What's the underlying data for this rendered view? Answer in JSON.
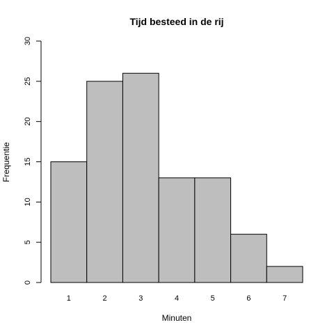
{
  "chart_data": {
    "type": "bar",
    "title": "Tijd besteed in de rij",
    "xlabel": "Minuten",
    "ylabel": "Frequentie",
    "categories": [
      "1",
      "2",
      "3",
      "4",
      "5",
      "6",
      "7"
    ],
    "values": [
      15,
      25,
      26,
      13,
      13,
      6,
      2
    ],
    "ylim": [
      0,
      30
    ],
    "yticks": [
      "0",
      "5",
      "10",
      "15",
      "20",
      "25",
      "30"
    ],
    "bar_color": "#bebebe",
    "grid": false,
    "legend": "none"
  }
}
